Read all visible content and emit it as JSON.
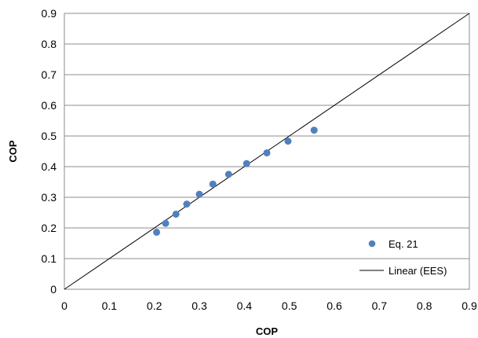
{
  "chart_data": {
    "type": "scatter",
    "title": "",
    "xlabel": "COP",
    "ylabel": "COP",
    "xlim": [
      0,
      0.9
    ],
    "ylim": [
      0,
      0.9
    ],
    "x_ticks": [
      "0",
      "0.1",
      "0.2",
      "0.3",
      "0.4",
      "0.5",
      "0.6",
      "0.7",
      "0.8",
      "0.9"
    ],
    "y_ticks": [
      "0",
      "0.1",
      "0.2",
      "0.3",
      "0.4",
      "0.5",
      "0.6",
      "0.7",
      "0.8",
      "0.9"
    ],
    "grid": "horizontal",
    "legend_position": "bottom-right",
    "series": [
      {
        "name": "Eq. 21",
        "type": "scatter",
        "color": "#4f81bd",
        "x": [
          0.205,
          0.225,
          0.248,
          0.272,
          0.3,
          0.33,
          0.365,
          0.405,
          0.45,
          0.497,
          0.555
        ],
        "y": [
          0.186,
          0.215,
          0.245,
          0.278,
          0.31,
          0.343,
          0.375,
          0.41,
          0.445,
          0.483,
          0.519
        ]
      },
      {
        "name": "Linear (EES)",
        "type": "line",
        "color": "#000000",
        "x": [
          0,
          0.9
        ],
        "y": [
          0,
          0.9
        ]
      }
    ]
  }
}
